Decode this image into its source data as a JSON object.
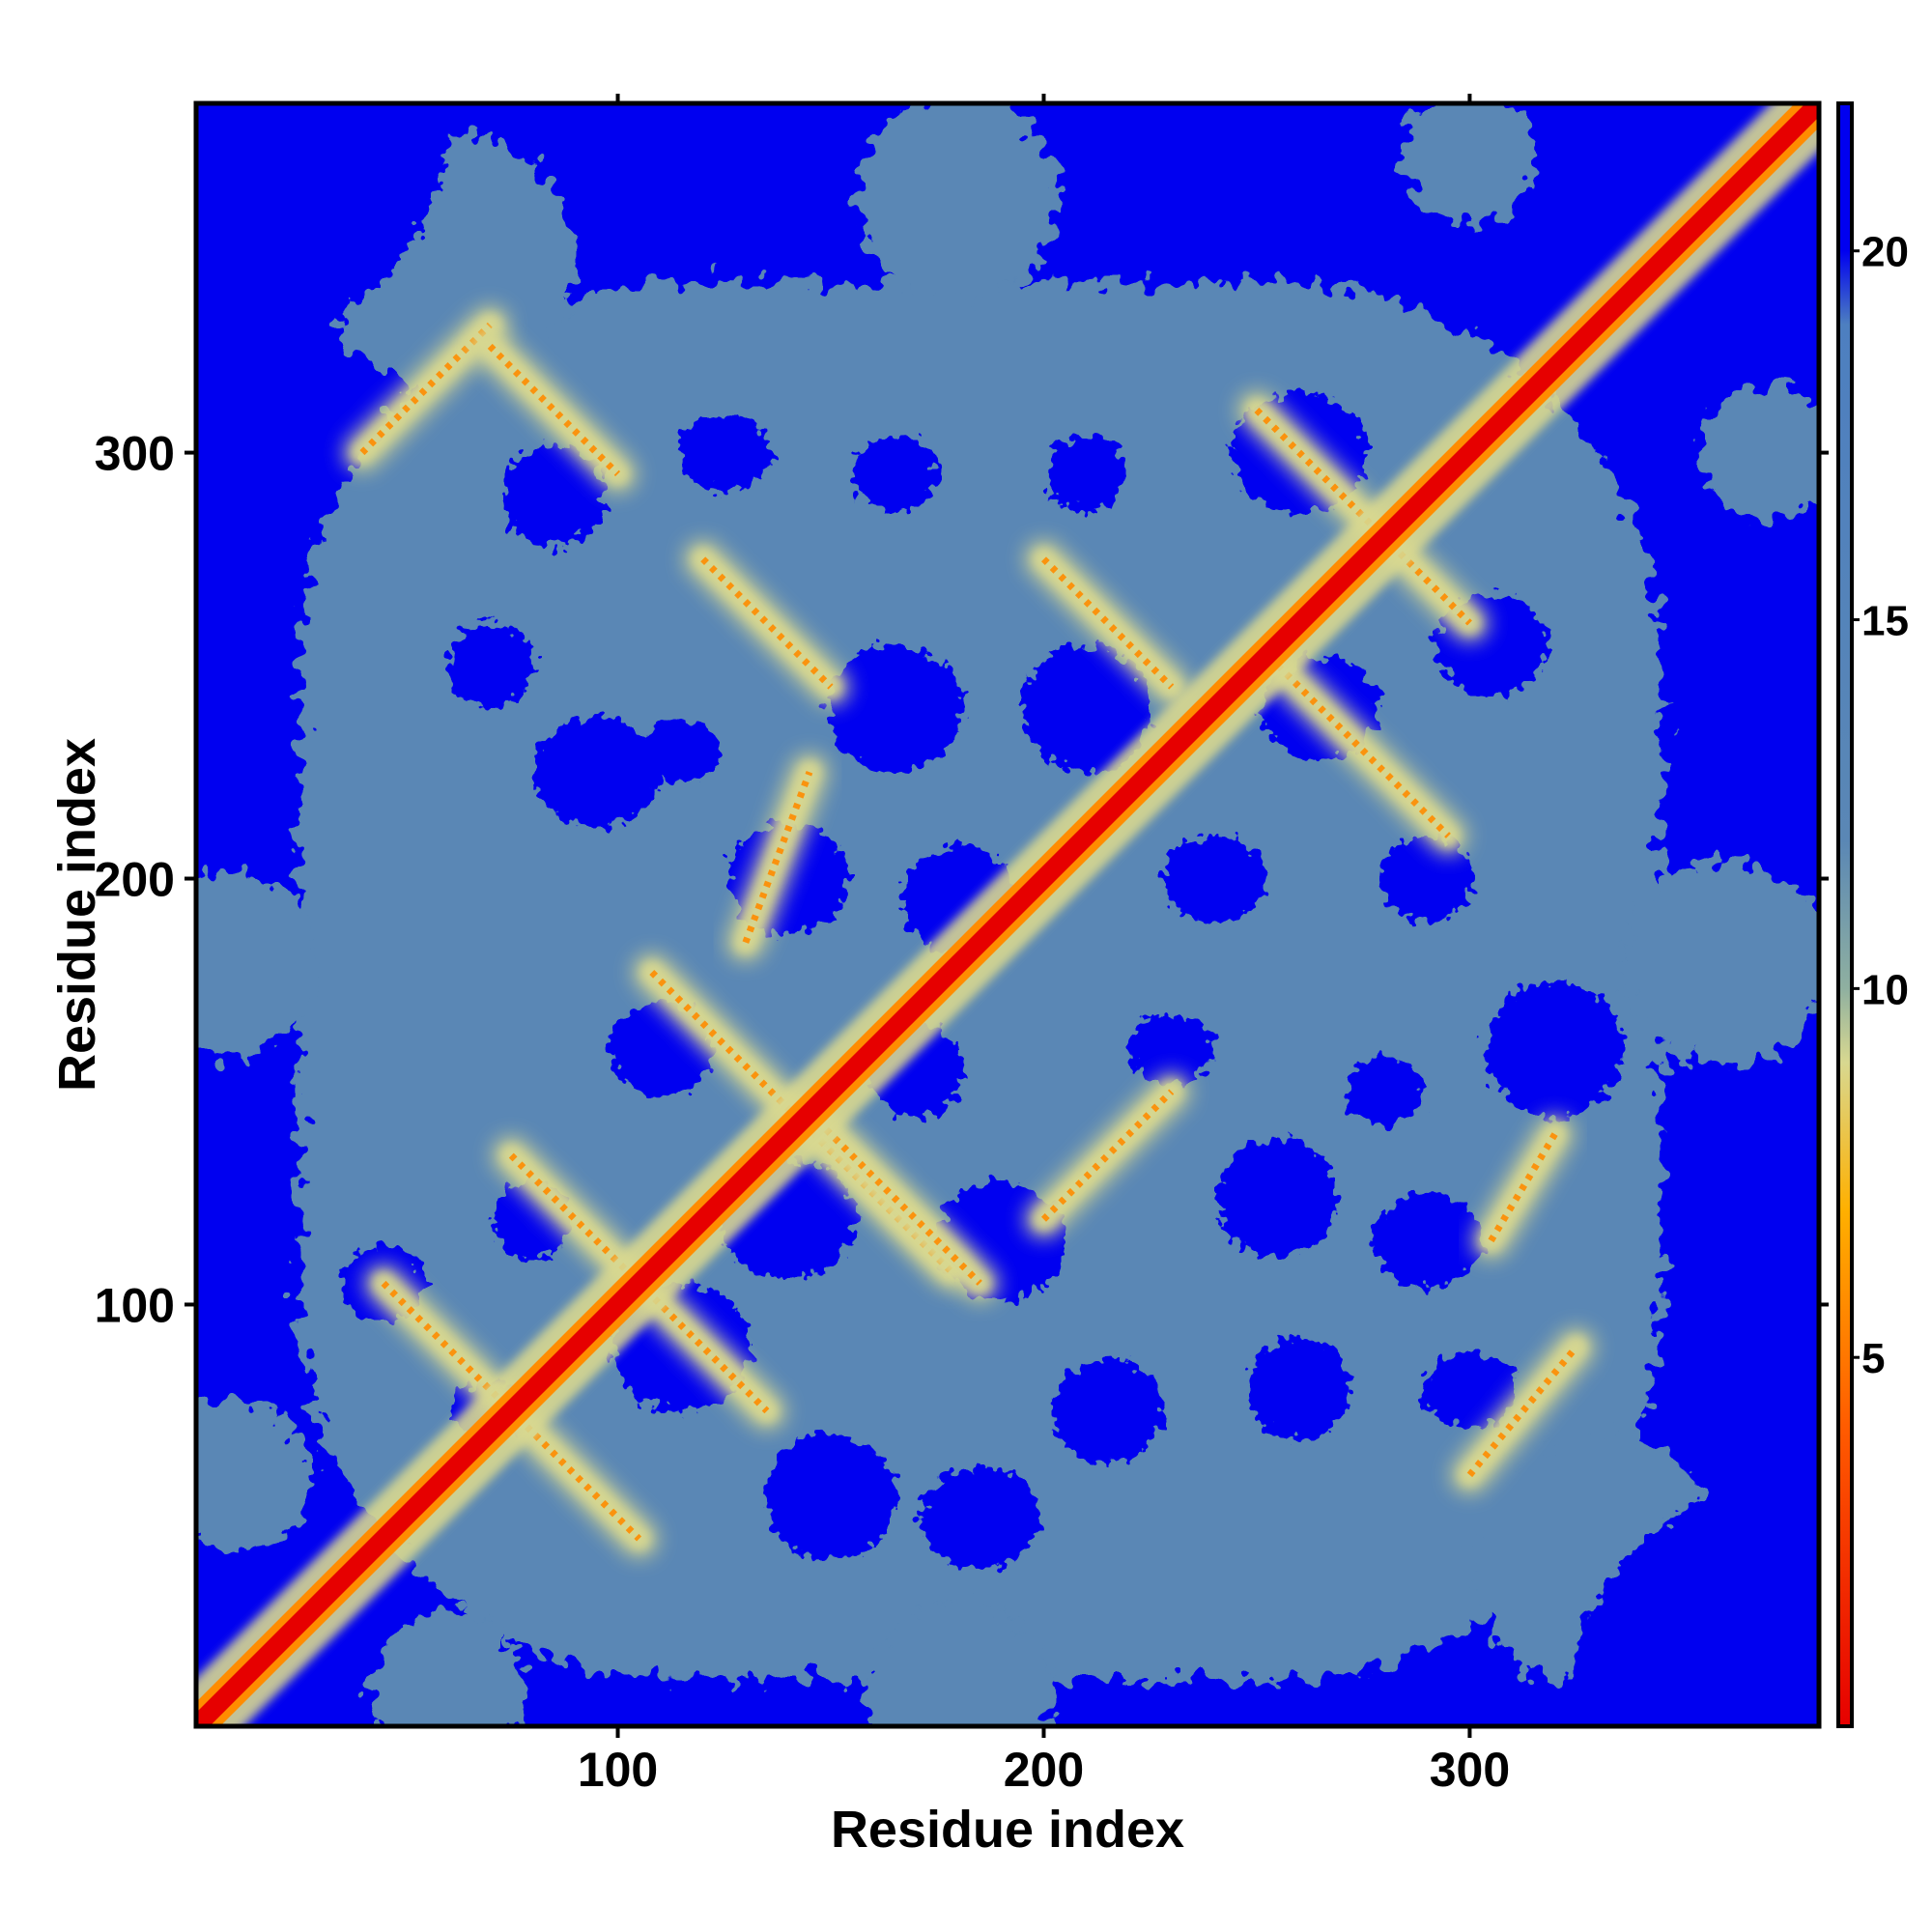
{
  "chart_data": {
    "type": "heatmap",
    "title": "",
    "xlabel": "Residue index",
    "ylabel": "Residue index",
    "xlim": [
      1,
      382
    ],
    "ylim": [
      1,
      382
    ],
    "x_ticks": [
      100,
      200,
      300
    ],
    "y_ticks": [
      100,
      200,
      300
    ],
    "x_tick_labels": [
      "100",
      "200",
      "300"
    ],
    "y_tick_labels": [
      "100",
      "200",
      "300"
    ],
    "colorbar": {
      "range": [
        0,
        22
      ],
      "ticks": [
        5,
        10,
        15,
        20
      ],
      "tick_labels": [
        "5",
        "10",
        "15",
        "20"
      ],
      "stops": [
        {
          "value": 0,
          "color": "#e60000"
        },
        {
          "value": 4,
          "color": "#ff5a00"
        },
        {
          "value": 7,
          "color": "#ffb000"
        },
        {
          "value": 9,
          "color": "#d8d890"
        },
        {
          "value": 10,
          "color": "#8fb0a0"
        },
        {
          "value": 12,
          "color": "#5a87b5"
        },
        {
          "value": 19,
          "color": "#4d7fc0"
        },
        {
          "value": 20,
          "color": "#0000f0"
        },
        {
          "value": 22,
          "color": "#0000f0"
        }
      ]
    },
    "grid": false,
    "legend": "none",
    "colors": {
      "background": "#0000f0",
      "contact_region": "#5a87b5",
      "near_contact": "#d8d890",
      "close_contact": "#ff8c00",
      "diagonal": "#e60000"
    },
    "features": {
      "diagonal": {
        "from": 1,
        "to": 382,
        "distance": 3.8
      },
      "contact_bands": [
        {
          "x0": 45,
          "y0": 105,
          "x1": 105,
          "y1": 45,
          "distance": 6
        },
        {
          "x0": 75,
          "y0": 135,
          "x1": 135,
          "y1": 75,
          "distance": 6
        },
        {
          "x0": 108,
          "y0": 178,
          "x1": 178,
          "y1": 108,
          "distance": 6
        },
        {
          "x0": 145,
          "y0": 145,
          "x1": 185,
          "y1": 105,
          "distance": 6
        },
        {
          "x0": 200,
          "y0": 120,
          "x1": 230,
          "y1": 150,
          "distance": 6
        },
        {
          "x0": 255,
          "y0": 250,
          "x1": 295,
          "y1": 210,
          "distance": 6
        },
        {
          "x0": 250,
          "y0": 310,
          "x1": 300,
          "y1": 260,
          "distance": 6
        },
        {
          "x0": 40,
          "y0": 300,
          "x1": 70,
          "y1": 330,
          "distance": 6
        },
        {
          "x0": 70,
          "y0": 325,
          "x1": 100,
          "y1": 295,
          "distance": 6
        },
        {
          "x0": 120,
          "y0": 275,
          "x1": 150,
          "y1": 245,
          "distance": 6
        },
        {
          "x0": 130,
          "y0": 185,
          "x1": 145,
          "y1": 225,
          "distance": 6
        },
        {
          "x0": 200,
          "y0": 275,
          "x1": 230,
          "y1": 245,
          "distance": 6
        },
        {
          "x0": 300,
          "y0": 60,
          "x1": 325,
          "y1": 90,
          "distance": 6
        },
        {
          "x0": 305,
          "y0": 115,
          "x1": 320,
          "y1": 140,
          "distance": 6
        }
      ],
      "empty_pockets": [
        [
          70,
          75
        ],
        [
          115,
          90
        ],
        [
          150,
          55
        ],
        [
          185,
          50
        ],
        [
          215,
          75
        ],
        [
          260,
          80
        ],
        [
          300,
          80
        ],
        [
          45,
          105
        ],
        [
          80,
          120
        ],
        [
          140,
          120
        ],
        [
          190,
          115
        ],
        [
          255,
          125
        ],
        [
          290,
          115
        ],
        [
          110,
          160
        ],
        [
          170,
          155
        ],
        [
          230,
          160
        ],
        [
          280,
          150
        ],
        [
          320,
          160
        ],
        [
          95,
          225
        ],
        [
          140,
          200
        ],
        [
          180,
          195
        ],
        [
          240,
          200
        ],
        [
          290,
          200
        ],
        [
          70,
          250
        ],
        [
          115,
          230
        ],
        [
          165,
          240
        ],
        [
          210,
          240
        ],
        [
          265,
          240
        ],
        [
          305,
          255
        ],
        [
          85,
          290
        ],
        [
          125,
          300
        ],
        [
          165,
          295
        ],
        [
          210,
          295
        ],
        [
          260,
          300
        ]
      ]
    }
  }
}
